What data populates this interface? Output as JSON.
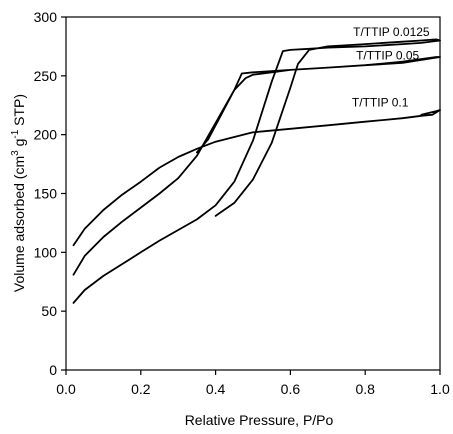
{
  "chart_data": {
    "type": "line",
    "title": "",
    "xlabel": "Relative Pressure, P/Po",
    "ylabel": {
      "prefix": "Volume adsorbed (cm",
      "sup1": "3",
      "mid": " g",
      "sup2": "-1",
      "suffix": " STP)"
    },
    "xlim": [
      0.0,
      1.0
    ],
    "ylim": [
      0,
      300
    ],
    "x_ticks": [
      "0.0",
      "0.2",
      "0.4",
      "0.6",
      "0.8",
      "1.0"
    ],
    "y_ticks": [
      "0",
      "50",
      "100",
      "150",
      "200",
      "250",
      "300"
    ],
    "grid": false,
    "line_color": "#000000",
    "series": [
      {
        "name": "T/TTIP 0.0125",
        "x": [
          0.02,
          0.05,
          0.1,
          0.15,
          0.2,
          0.25,
          0.3,
          0.35,
          0.4,
          0.45,
          0.5,
          0.55,
          0.58,
          0.6,
          0.65,
          0.7,
          0.8,
          0.9,
          0.95,
          1.0,
          0.99,
          0.95,
          0.9,
          0.8,
          0.7,
          0.65,
          0.62,
          0.6,
          0.55,
          0.5,
          0.45,
          0.4
        ],
        "y": [
          57,
          68,
          80,
          90,
          100,
          110,
          119,
          128,
          140,
          160,
          195,
          245,
          271,
          272,
          273,
          274,
          275,
          277,
          278,
          280,
          281,
          280,
          279,
          277,
          275,
          272,
          260,
          240,
          193,
          162,
          142,
          131
        ]
      },
      {
        "name": "T/TTIP 0.05",
        "x": [
          0.02,
          0.05,
          0.1,
          0.15,
          0.2,
          0.25,
          0.3,
          0.35,
          0.4,
          0.45,
          0.47,
          0.5,
          0.6,
          0.7,
          0.8,
          0.9,
          1.0,
          0.99,
          0.9,
          0.8,
          0.7,
          0.6,
          0.55,
          0.5,
          0.48,
          0.45,
          0.4,
          0.38,
          0.35
        ],
        "y": [
          81,
          97,
          113,
          126,
          138,
          150,
          163,
          182,
          210,
          238,
          252,
          253,
          255,
          257,
          259,
          261,
          266,
          266,
          262,
          259,
          257,
          255,
          253,
          251,
          248,
          238,
          208,
          196,
          185
        ]
      },
      {
        "name": "T/TTIP 0.1",
        "x": [
          0.02,
          0.05,
          0.1,
          0.15,
          0.2,
          0.25,
          0.3,
          0.35,
          0.4,
          0.45,
          0.5,
          0.6,
          0.7,
          0.8,
          0.9,
          0.95,
          0.98,
          1.0,
          0.99,
          0.95
        ],
        "y": [
          106,
          120,
          136,
          149,
          160,
          172,
          181,
          188,
          194,
          198,
          202,
          205,
          208,
          211,
          214,
          216,
          217,
          221,
          220,
          217
        ]
      }
    ],
    "annotations": [
      {
        "text": "T/TTIP 0.0125",
        "x": 0.87,
        "y": 284
      },
      {
        "text": "T/TTIP 0.05",
        "x": 0.86,
        "y": 264
      },
      {
        "text": "T/TTIP 0.1",
        "x": 0.84,
        "y": 224
      }
    ]
  }
}
